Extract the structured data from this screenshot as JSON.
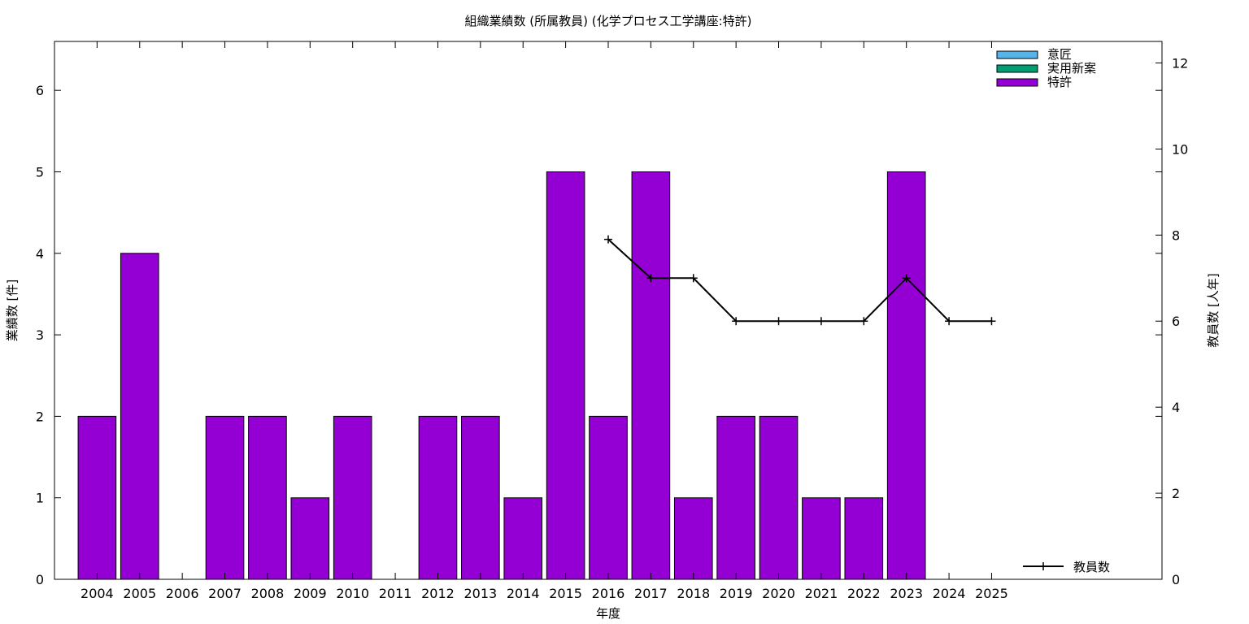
{
  "chart_data": {
    "type": "bar",
    "title": "組織業績数 (所属教員) (化学プロセス工学講座:特許)",
    "xlabel": "年度",
    "ylabel": "業績数 [件]",
    "y2label": "教員数 [人年]",
    "categories": [
      "2004",
      "2005",
      "2006",
      "2007",
      "2008",
      "2009",
      "2010",
      "2011",
      "2012",
      "2013",
      "2014",
      "2015",
      "2016",
      "2017",
      "2018",
      "2019",
      "2020",
      "2021",
      "2022",
      "2023",
      "2024",
      "2025"
    ],
    "ylim": [
      0,
      6.6
    ],
    "yticks": [
      0,
      1,
      2,
      3,
      4,
      5,
      6
    ],
    "y2lim": [
      0,
      12.5
    ],
    "y2ticks": [
      0,
      2,
      4,
      6,
      8,
      10,
      12
    ],
    "x_slots": 26,
    "grid": false,
    "legend_position": "top-right",
    "series": [
      {
        "name": "意匠",
        "color": "#56b4e9",
        "values": [
          0,
          0,
          0,
          0,
          0,
          0,
          0,
          0,
          0,
          0,
          0,
          0,
          0,
          0,
          0,
          0,
          0,
          0,
          0,
          0,
          0,
          0
        ]
      },
      {
        "name": "実用新案",
        "color": "#009e73",
        "values": [
          0,
          0,
          0,
          0,
          0,
          0,
          0,
          0,
          0,
          0,
          0,
          0,
          0,
          0,
          0,
          0,
          0,
          0,
          0,
          0,
          0,
          0
        ]
      },
      {
        "name": "特許",
        "color": "#9400d3",
        "values": [
          2,
          4,
          0,
          2,
          2,
          1,
          2,
          0,
          2,
          2,
          1,
          5,
          2,
          5,
          1,
          2,
          2,
          1,
          1,
          5,
          0,
          0
        ]
      }
    ],
    "line_series": {
      "name": "教員数",
      "axis": "y2",
      "color": "#000000",
      "values": [
        null,
        null,
        null,
        null,
        null,
        null,
        null,
        null,
        null,
        null,
        null,
        null,
        7.9,
        7,
        7,
        6,
        6,
        6,
        6,
        7,
        6,
        6
      ]
    }
  }
}
